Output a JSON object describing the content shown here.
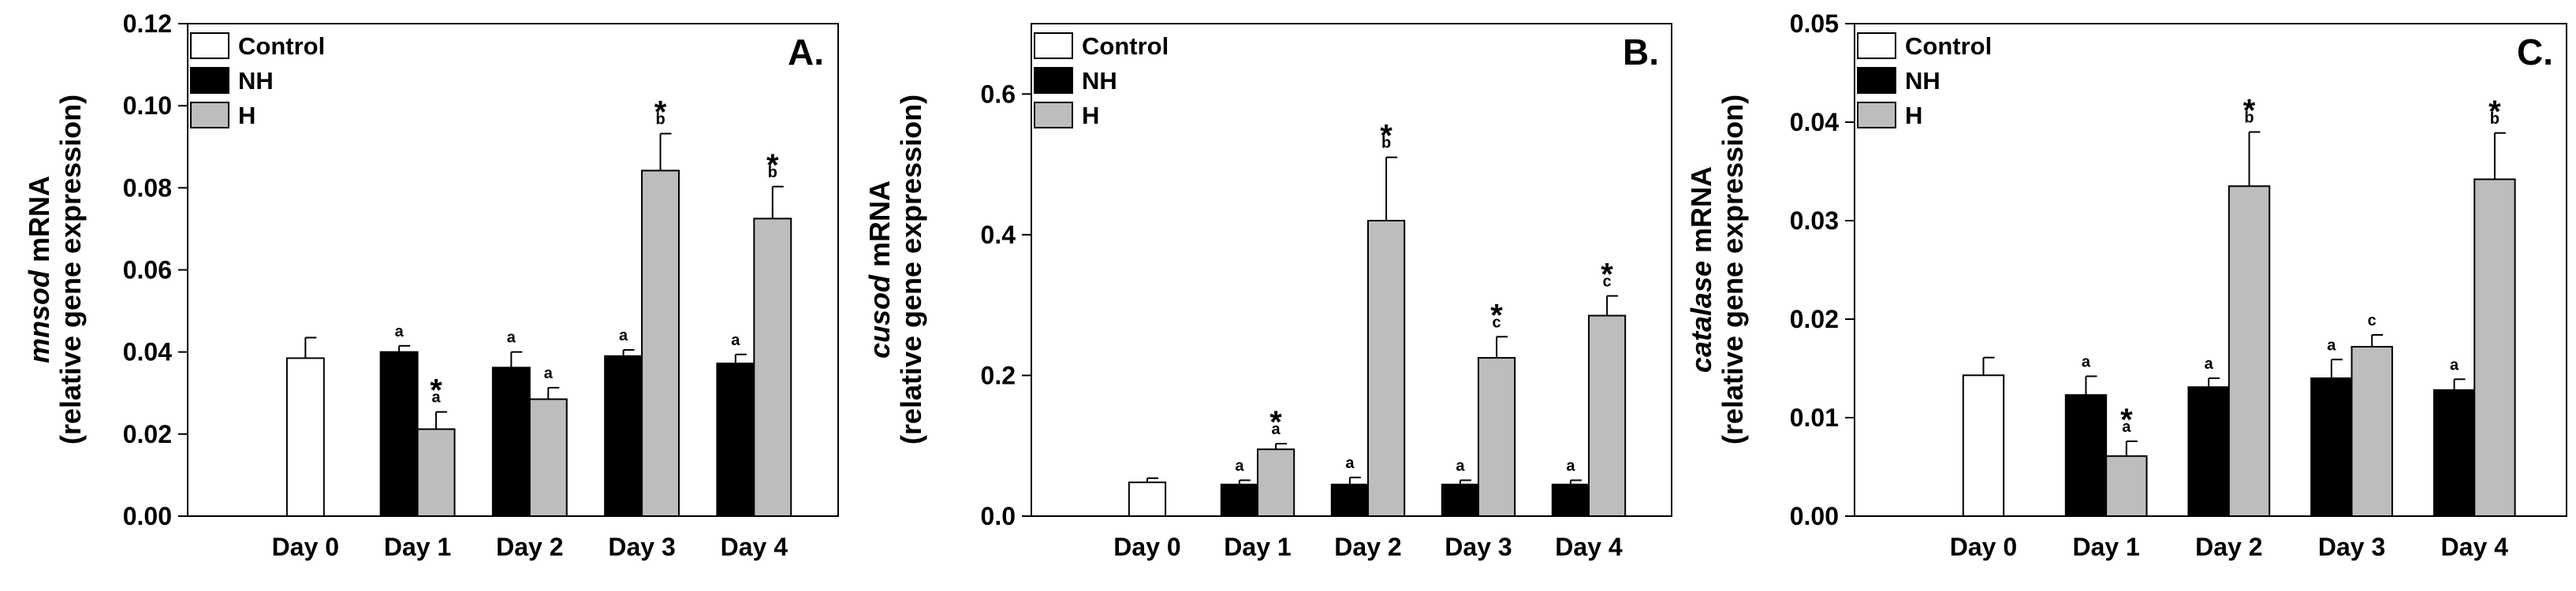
{
  "chart_data": [
    {
      "type": "bar",
      "panel_label": "A.",
      "ylabel_gene": "mnsod",
      "ylabel_suffix": " mRNA",
      "ylabel_line2": "(relative gene  expression)",
      "ylim": [
        0,
        0.12
      ],
      "yticks": [
        "0.00",
        "0.02",
        "0.04",
        "0.06",
        "0.08",
        "0.10",
        "0.12"
      ],
      "categories": [
        "Day 0",
        "Day 1",
        "Day 2",
        "Day 3",
        "Day 4"
      ],
      "legend": [
        "Control",
        "NH",
        "H"
      ],
      "series": [
        {
          "name": "Control",
          "color": "#ffffff",
          "values": [
            0.0385,
            null,
            null,
            null,
            null
          ],
          "errors": [
            0.005,
            null,
            null,
            null,
            null
          ],
          "labels": [
            "",
            "",
            "",
            "",
            ""
          ],
          "stars": [
            false,
            false,
            false,
            false,
            false
          ]
        },
        {
          "name": "NH",
          "color": "#000000",
          "values": [
            null,
            0.04,
            0.0362,
            0.039,
            0.0372
          ],
          "errors": [
            null,
            0.0015,
            0.0038,
            0.0015,
            0.0022
          ],
          "labels": [
            "",
            "a",
            "a",
            "a",
            "a"
          ],
          "stars": [
            false,
            false,
            false,
            false,
            false
          ]
        },
        {
          "name": "H",
          "color": "#bdbdbd",
          "values": [
            null,
            0.0212,
            0.0285,
            0.0842,
            0.0725
          ],
          "errors": [
            null,
            0.0042,
            0.0028,
            0.009,
            0.0078
          ],
          "labels": [
            "",
            "a",
            "a",
            "b",
            "b"
          ],
          "stars": [
            false,
            true,
            false,
            true,
            true
          ]
        }
      ]
    },
    {
      "type": "bar",
      "panel_label": "B.",
      "ylabel_gene": "cusod",
      "ylabel_suffix": " mRNA",
      "ylabel_line2": "(relative gene  expression)",
      "ylim": [
        0,
        0.7
      ],
      "yticks": [
        "0.0",
        "0.2",
        "0.4",
        "0.6"
      ],
      "categories": [
        "Day 0",
        "Day 1",
        "Day 2",
        "Day 3",
        "Day 4"
      ],
      "legend": [
        "Control",
        "NH",
        "H"
      ],
      "series": [
        {
          "name": "Control",
          "color": "#ffffff",
          "values": [
            0.048,
            null,
            null,
            null,
            null
          ],
          "errors": [
            0.006,
            null,
            null,
            null,
            null
          ],
          "labels": [
            "",
            "",
            "",
            "",
            ""
          ],
          "stars": [
            false,
            false,
            false,
            false,
            false
          ]
        },
        {
          "name": "NH",
          "color": "#000000",
          "values": [
            null,
            0.045,
            0.045,
            0.045,
            0.045
          ],
          "errors": [
            null,
            0.006,
            0.01,
            0.006,
            0.006
          ],
          "labels": [
            "",
            "a",
            "a",
            "a",
            "a"
          ],
          "stars": [
            false,
            false,
            false,
            false,
            false
          ]
        },
        {
          "name": "H",
          "color": "#bdbdbd",
          "values": [
            null,
            0.095,
            0.42,
            0.225,
            0.285
          ],
          "errors": [
            null,
            0.008,
            0.09,
            0.03,
            0.028
          ],
          "labels": [
            "",
            "a",
            "b",
            "c",
            "c"
          ],
          "stars": [
            false,
            true,
            true,
            true,
            true
          ]
        }
      ]
    },
    {
      "type": "bar",
      "panel_label": "C.",
      "ylabel_gene": "catalase",
      "ylabel_suffix": " mRNA",
      "ylabel_line2": "(relative gene  expression)",
      "ylim": [
        0,
        0.05
      ],
      "yticks": [
        "0.00",
        "0.01",
        "0.02",
        "0.03",
        "0.04",
        "0.05"
      ],
      "categories": [
        "Day 0",
        "Day 1",
        "Day 2",
        "Day 3",
        "Day 4"
      ],
      "legend": [
        "Control",
        "NH",
        "H"
      ],
      "series": [
        {
          "name": "Control",
          "color": "#ffffff",
          "values": [
            0.0143,
            null,
            null,
            null,
            null
          ],
          "errors": [
            0.0018,
            null,
            null,
            null,
            null
          ],
          "labels": [
            "",
            "",
            "",
            "",
            ""
          ],
          "stars": [
            false,
            false,
            false,
            false,
            false
          ]
        },
        {
          "name": "NH",
          "color": "#000000",
          "values": [
            null,
            0.0123,
            0.0131,
            0.014,
            0.0128
          ],
          "errors": [
            null,
            0.0019,
            0.0009,
            0.0019,
            0.0011
          ],
          "labels": [
            "",
            "a",
            "a",
            "a",
            "a"
          ],
          "stars": [
            false,
            false,
            false,
            false,
            false
          ]
        },
        {
          "name": "H",
          "color": "#bdbdbd",
          "values": [
            null,
            0.0061,
            0.0335,
            0.0172,
            0.0342
          ],
          "errors": [
            null,
            0.0015,
            0.0055,
            0.0012,
            0.0047
          ],
          "labels": [
            "",
            "a",
            "b",
            "c",
            "b"
          ],
          "stars": [
            false,
            true,
            true,
            false,
            true
          ]
        }
      ]
    }
  ]
}
